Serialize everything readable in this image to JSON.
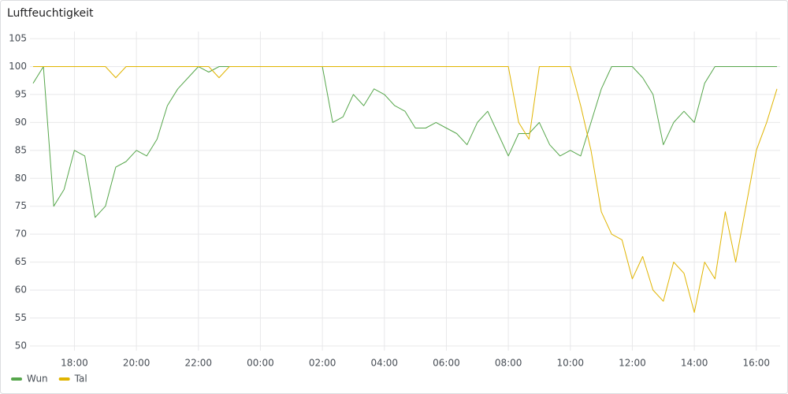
{
  "chart_data": {
    "type": "line",
    "title": "Luftfeuchtigkeit",
    "x": [
      null,
      null,
      null,
      null,
      "18:00",
      null,
      null,
      null,
      null,
      null,
      "20:00",
      null,
      null,
      null,
      null,
      null,
      "22:00",
      null,
      null,
      null,
      null,
      null,
      "00:00",
      null,
      null,
      null,
      null,
      null,
      "02:00",
      null,
      null,
      null,
      null,
      null,
      "04:00",
      null,
      null,
      null,
      null,
      null,
      "06:00",
      null,
      null,
      null,
      null,
      null,
      "08:00",
      null,
      null,
      null,
      null,
      null,
      "10:00",
      null,
      null,
      null,
      null,
      null,
      "12:00",
      null,
      null,
      null,
      null,
      null,
      "14:00",
      null,
      null,
      null,
      null,
      null,
      "16:00",
      null,
      null
    ],
    "series": [
      {
        "name": "Wun",
        "color": "#56a64b",
        "values": [
          97,
          100,
          75,
          78,
          85,
          84,
          73,
          75,
          82,
          83,
          85,
          84,
          87,
          93,
          96,
          98,
          100,
          99,
          100,
          100,
          100,
          100,
          100,
          100,
          100,
          100,
          100,
          100,
          100,
          90,
          91,
          95,
          93,
          96,
          95,
          93,
          92,
          89,
          89,
          90,
          89,
          88,
          86,
          90,
          92,
          88,
          84,
          88,
          88,
          90,
          86,
          84,
          85,
          84,
          90,
          96,
          100,
          100,
          100,
          98,
          95,
          86,
          90,
          92,
          90,
          97,
          100,
          100,
          100,
          100,
          100,
          100,
          100
        ]
      },
      {
        "name": "Tal",
        "color": "#e0b400",
        "values": [
          100,
          100,
          100,
          100,
          100,
          100,
          100,
          100,
          98,
          100,
          100,
          100,
          100,
          100,
          100,
          100,
          100,
          100,
          98,
          100,
          100,
          100,
          100,
          100,
          100,
          100,
          100,
          100,
          100,
          100,
          100,
          100,
          100,
          100,
          100,
          100,
          100,
          100,
          100,
          100,
          100,
          100,
          100,
          100,
          100,
          100,
          100,
          90,
          87,
          100,
          100,
          100,
          100,
          93,
          85,
          74,
          70,
          69,
          62,
          66,
          60,
          58,
          65,
          63,
          56,
          65,
          62,
          74,
          65,
          75,
          85,
          90,
          96
        ]
      }
    ],
    "ylim": [
      50,
      105
    ],
    "yticks": [
      50,
      55,
      60,
      65,
      70,
      75,
      80,
      85,
      90,
      95,
      100,
      105
    ],
    "grid": true,
    "legend": "bottom-left"
  }
}
